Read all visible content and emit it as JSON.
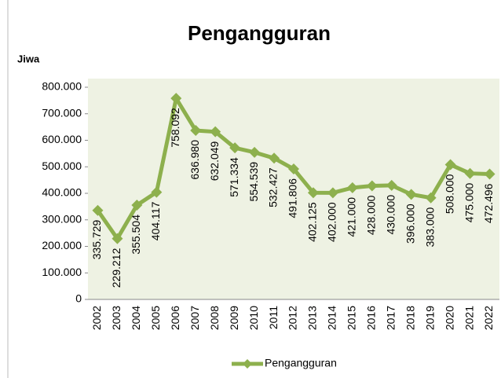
{
  "chart_data": {
    "type": "line",
    "title": "Pengangguran",
    "y_label": "Jiwa",
    "categories": [
      "2002",
      "2003",
      "2004",
      "2005",
      "2006",
      "2007",
      "2008",
      "2009",
      "2010",
      "2011",
      "2012",
      "2013",
      "2014",
      "2015",
      "2016",
      "2017",
      "2018",
      "2019",
      "2020",
      "2021",
      "2022"
    ],
    "series": [
      {
        "name": "Pengangguran",
        "color": "#8db04d",
        "values": [
          335729,
          229212,
          355504,
          404117,
          758092,
          636980,
          632049,
          571334,
          554539,
          532427,
          491806,
          402125,
          402000,
          421000,
          428000,
          430000,
          396000,
          383000,
          508000,
          475000,
          472496
        ],
        "value_labels": [
          "335.729",
          "229.212",
          "355.504",
          "404.117",
          "758.092",
          "636.980",
          "632.049",
          "571.334",
          "554.539",
          "532.427",
          "491.806",
          "402.125",
          "402.000",
          "421.000",
          "428.000",
          "430.000",
          "396.000",
          "383.000",
          "508.000",
          "475.000",
          "472.496"
        ]
      }
    ],
    "ylim": [
      0,
      800000
    ],
    "yticks": [
      0,
      {
        "value": 100000,
        "label": "100.000"
      },
      {
        "value": 200000,
        "label": "200.000"
      },
      {
        "value": 300000,
        "label": "300.000"
      },
      {
        "value": 400000,
        "label": "400.000"
      },
      {
        "value": 500000,
        "label": "500.000"
      },
      {
        "value": 600000,
        "label": "600.000"
      },
      {
        "value": 700000,
        "label": "700.000"
      },
      {
        "value": 800000,
        "label": "800.000"
      }
    ],
    "grid": false,
    "legend": "bottom"
  }
}
